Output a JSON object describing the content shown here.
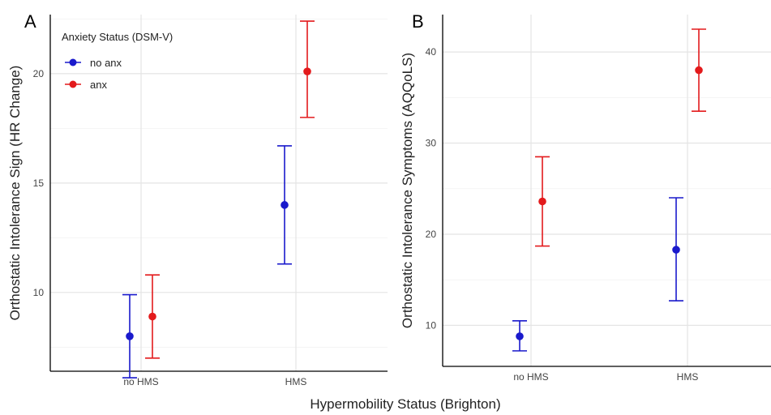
{
  "figure": {
    "xlabel": "Hypermobility Status (Brighton)",
    "colors": {
      "no anx": "#1a1acc",
      "anx": "#e31a1c"
    }
  },
  "chart_data": [
    {
      "type": "scatter",
      "panel": "A",
      "title": "",
      "ylabel": "Orthostatic Intolerance Sign (HR Change)",
      "xlabel": "Hypermobility Status (Brighton)",
      "categories": [
        "no HMS",
        "HMS"
      ],
      "ylim": [
        6.4,
        22.7
      ],
      "yticks": [
        10,
        15,
        20
      ],
      "grid": true,
      "legend": {
        "title": "Anxiety Status (DSM-V)",
        "placement": "top-left"
      },
      "series": [
        {
          "name": "no anx",
          "color": "#1a1acc",
          "values": [
            8.0,
            14.0
          ],
          "lower": [
            6.1,
            11.3
          ],
          "upper": [
            9.9,
            16.7
          ]
        },
        {
          "name": "anx",
          "color": "#e31a1c",
          "values": [
            8.9,
            20.1
          ],
          "lower": [
            7.0,
            18.0
          ],
          "upper": [
            10.8,
            22.4
          ]
        }
      ]
    },
    {
      "type": "scatter",
      "panel": "B",
      "title": "",
      "ylabel": "Orthostatic Intolerance Symptoms (AQQoLS)",
      "xlabel": "Hypermobility Status (Brighton)",
      "categories": [
        "no HMS",
        "HMS"
      ],
      "ylim": [
        5.5,
        44.1
      ],
      "yticks": [
        10,
        20,
        30,
        40
      ],
      "grid": true,
      "legend": null,
      "series": [
        {
          "name": "no anx",
          "color": "#1a1acc",
          "values": [
            8.8,
            18.3
          ],
          "lower": [
            7.2,
            12.7
          ],
          "upper": [
            10.5,
            24.0
          ]
        },
        {
          "name": "anx",
          "color": "#e31a1c",
          "values": [
            23.6,
            38.0
          ],
          "lower": [
            18.7,
            33.5
          ],
          "upper": [
            28.5,
            42.5
          ]
        }
      ]
    }
  ]
}
